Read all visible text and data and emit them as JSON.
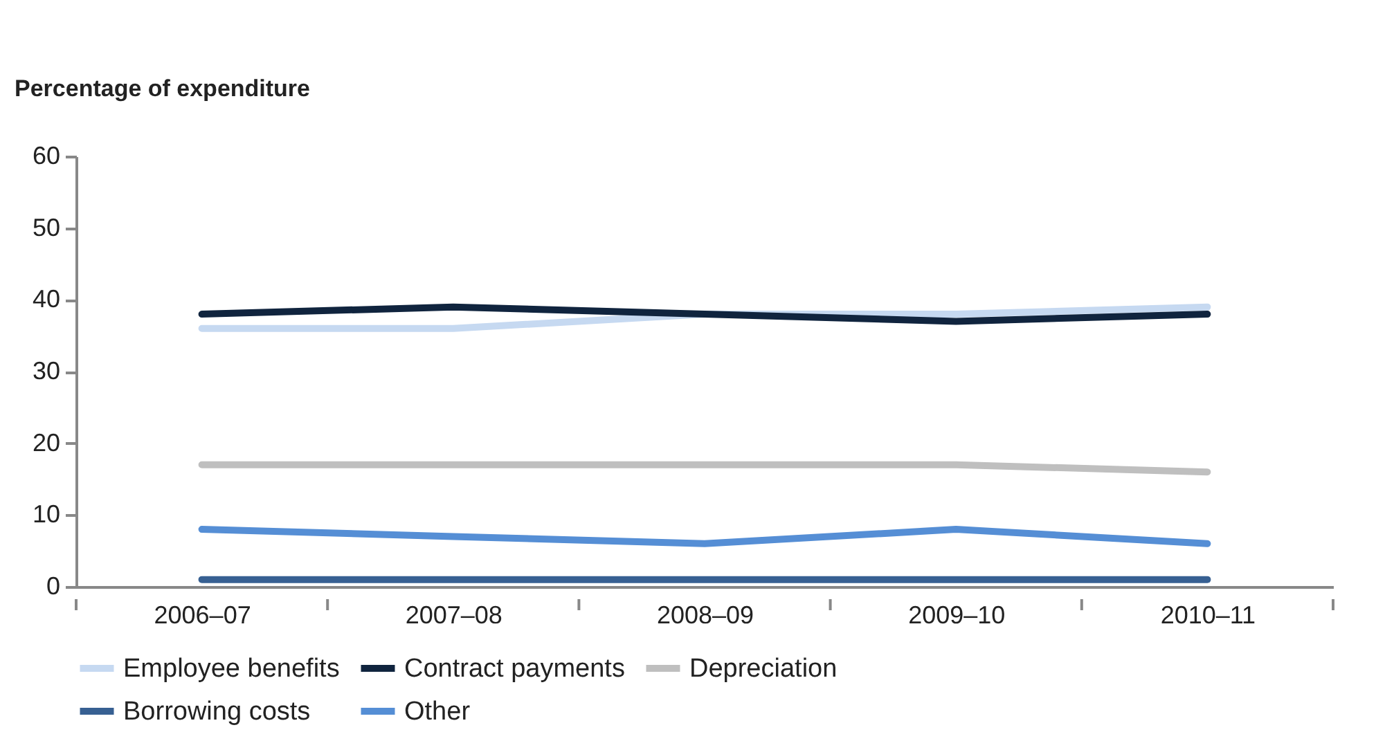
{
  "chart_data": {
    "type": "line",
    "ylabel": "Percentage of expenditure",
    "categories": [
      "2006–07",
      "2007–08",
      "2008–09",
      "2009–10",
      "2010–11"
    ],
    "series": [
      {
        "name": "Employee benefits",
        "color": "#c6d9f1",
        "values": [
          36,
          36,
          38,
          38,
          39
        ]
      },
      {
        "name": "Contract payments",
        "color": "#10243e",
        "values": [
          38,
          39,
          38,
          37,
          38
        ]
      },
      {
        "name": "Depreciation",
        "color": "#bfbfbf",
        "values": [
          17,
          17,
          17,
          17,
          16
        ]
      },
      {
        "name": "Borrowing costs",
        "color": "#376092",
        "values": [
          1,
          1,
          1,
          1,
          1
        ]
      },
      {
        "name": "Other",
        "color": "#558ed5",
        "values": [
          8,
          7,
          6,
          8,
          6
        ]
      }
    ],
    "ylim": [
      0,
      60
    ],
    "yticks": [
      0,
      10,
      20,
      30,
      40,
      50,
      60
    ],
    "grid": false,
    "legend": "bottom",
    "marker": "none",
    "line_style": "solid"
  }
}
